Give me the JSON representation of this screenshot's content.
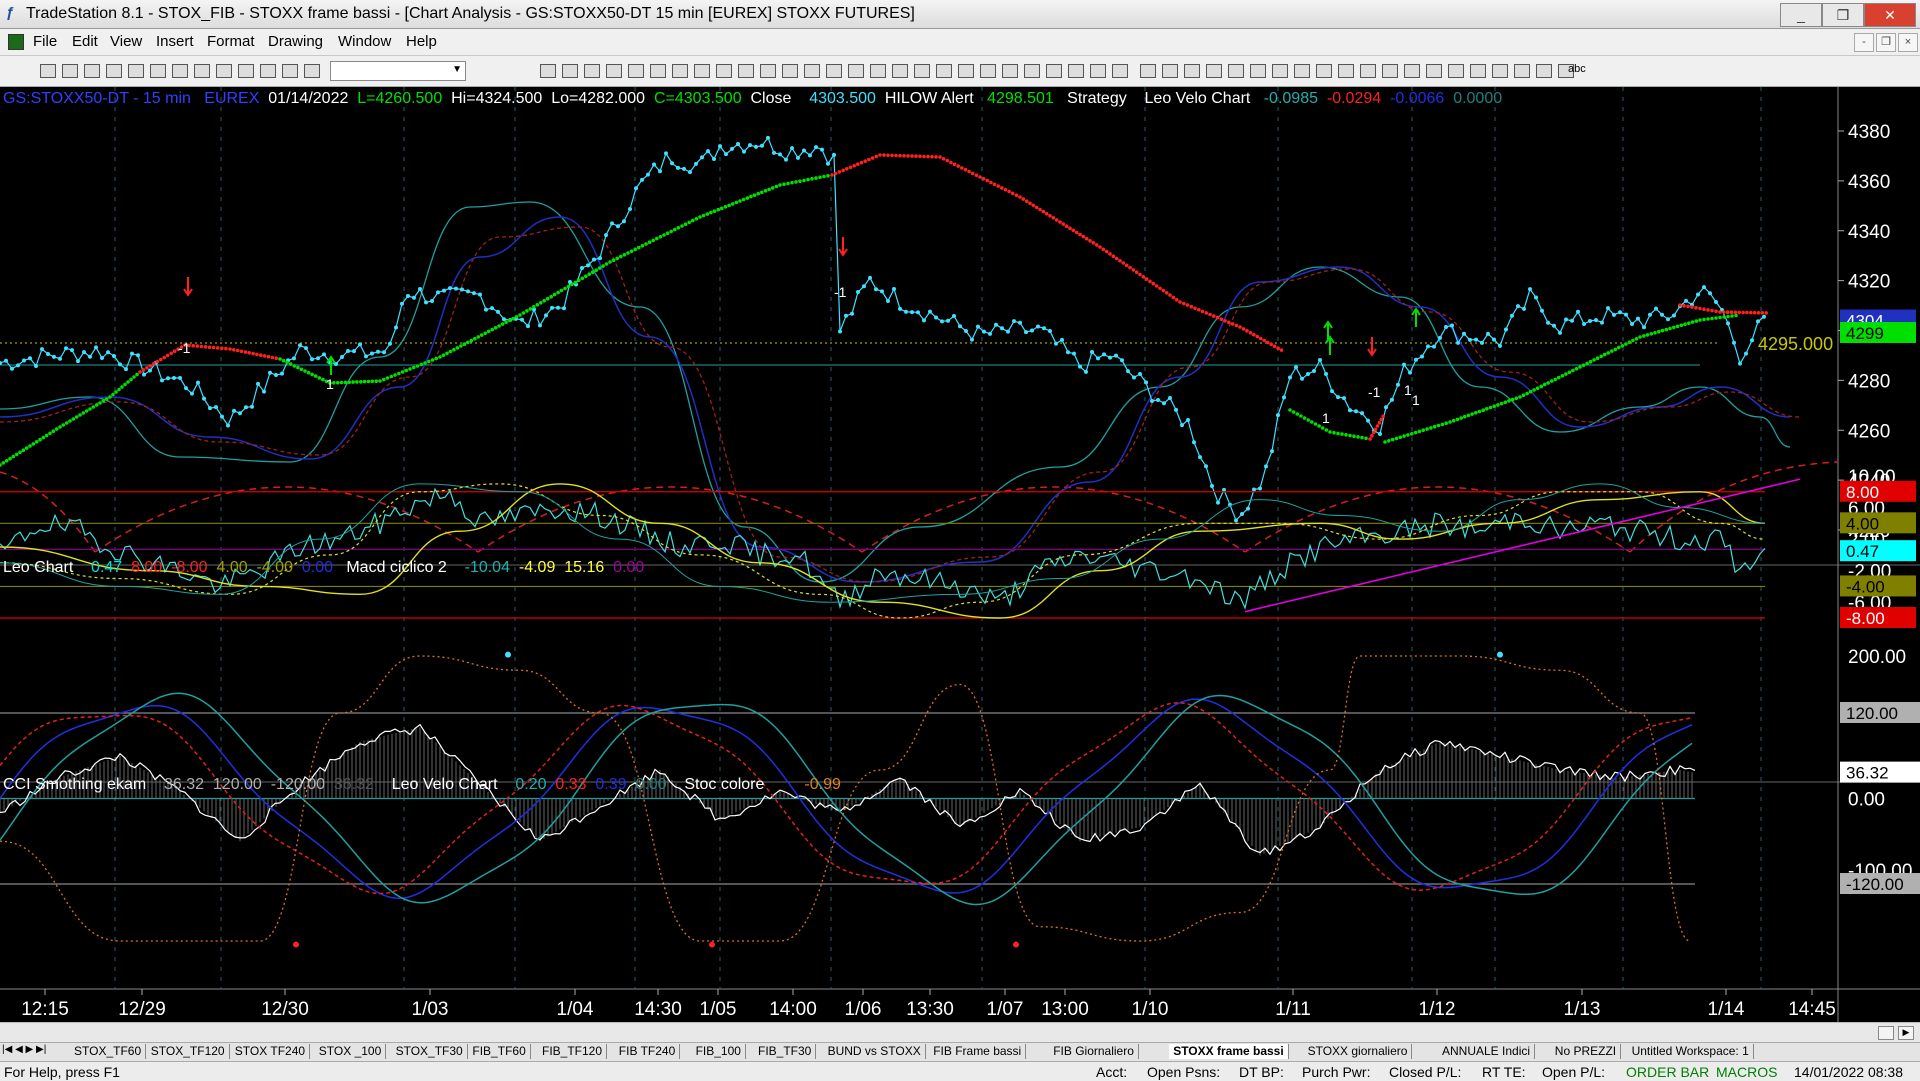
{
  "window": {
    "title": "TradeStation 8.1 - STOX_FIB - STOXX frame bassi - [Chart Analysis - GS:STOXX50-DT  15 min  [EUREX] STOXX FUTURES]",
    "controls": {
      "minimize": "_",
      "restore": "❐",
      "close": "✕"
    }
  },
  "menu": {
    "items": [
      "File",
      "Edit",
      "View",
      "Insert",
      "Format",
      "Drawing",
      "Window",
      "Help"
    ],
    "mdi": {
      "minimize": "-",
      "restore": "❐",
      "close": "×"
    }
  },
  "toolbar": {
    "combo_value": "",
    "text_tool_label": "abc"
  },
  "chart_header": {
    "symbol": "GS:STOXX50-DT - 15 min",
    "exchange": "EUREX",
    "date": "01/14/2022",
    "last": "L=4260.500",
    "hi": "Hi=4324.500",
    "lo": "Lo=4282.000",
    "close_c": "C=4303.500",
    "close_label": "Close",
    "close_val": "4303.500",
    "hilow_label": "HILOW Alert",
    "hilow_val": "4298.501",
    "strategy_label": "Strategy",
    "leo_label": "Leo Velo Chart",
    "leo_v1": "-0.0985",
    "leo_v2": "-0.0294",
    "leo_v3": "-0.0066",
    "leo_v4": "0.0000"
  },
  "panel2_header": {
    "leo_label": "Leo Chart",
    "v1": "0.47",
    "v2": "8.00",
    "v3": "-8.00",
    "v4": "4.00",
    "v5": "-4.00",
    "v6": "0.00",
    "macd_label": "Macd ciclico 2",
    "m1": "-10.04",
    "m2": "-4.09",
    "m3": "15.16",
    "m4": "0.00"
  },
  "panel3_header": {
    "cci_label": "CCI Smothing ekam",
    "c1": "36.32",
    "c2": "120.00",
    "c3": "-120.00",
    "c4": "36.32",
    "leo_label": "Leo Velo Chart",
    "l1": "0.20",
    "l2": "0.33",
    "l3": "0.39",
    "l4": "0.00",
    "stoc_label": "Stoc colore",
    "stoc_val": "-0.99"
  },
  "price_axis": {
    "ticks": [
      "4380",
      "4360",
      "4340",
      "4320",
      "4300",
      "4280",
      "4260",
      "4240",
      "4220"
    ],
    "marker_blue": "4304",
    "marker_green": "4299",
    "level_label": "4295.000"
  },
  "osc_axis": {
    "ticks": [
      "10.00",
      "6.00",
      "2.00",
      "-2.00",
      "-6.00"
    ],
    "markers": [
      {
        "text": "8.00",
        "color": "#e00000",
        "textColor": "#ffffff"
      },
      {
        "text": "4.00",
        "color": "#808000",
        "textColor": "#000000"
      },
      {
        "text": "0.47",
        "color": "#00ffff",
        "textColor": "#000000"
      },
      {
        "text": "-4.00",
        "color": "#808000",
        "textColor": "#000000"
      },
      {
        "text": "-8.00",
        "color": "#e00000",
        "textColor": "#ffffff"
      }
    ]
  },
  "cci_axis": {
    "ticks": [
      "200.00",
      "0.00",
      "-100.00"
    ],
    "markers": [
      {
        "text": "120.00",
        "color": "#b0b0b0",
        "textColor": "#000000"
      },
      {
        "text": "36.32",
        "color": "#ffffff",
        "textColor": "#000000"
      },
      {
        "text": "-120.00",
        "color": "#b0b0b0",
        "textColor": "#000000"
      }
    ]
  },
  "time_axis": {
    "labels": [
      "12:15",
      "12/29",
      "12/30",
      "1/03",
      "1/04",
      "14:30",
      "1/05",
      "14:00",
      "1/06",
      "13:30",
      "1/07",
      "13:00",
      "1/10",
      "1/11",
      "1/12",
      "1/13",
      "1/14",
      "14:45"
    ]
  },
  "signals": [
    "-1",
    "1",
    "-1",
    "-1",
    "1",
    "1",
    "1"
  ],
  "colors": {
    "price": "#40e0ff",
    "green_ma": "#00e000",
    "red_ma": "#ff2020",
    "blue_line": "#2030c0",
    "teal_line": "#20a0a0",
    "magenta_trend": "#e000e0"
  },
  "tabs": [
    "STOX_TF60",
    "STOX_TF120",
    "STOX TF240",
    "STOX _100",
    "STOX_TF30",
    "FIB_TF60",
    "FIB_TF120",
    "FIB TF240",
    "FIB_100",
    "FIB_TF30",
    "BUND vs STOXX",
    "FIB Frame bassi",
    "FIB Giornaliero",
    "STOXX frame bassi",
    "STOXX giornaliero",
    "ANNUALE Indici",
    "No PREZZI",
    "Untitled Workspace: 1"
  ],
  "active_tab": "STOXX frame bassi",
  "status": {
    "help": "For Help, press F1",
    "acct": "Acct:",
    "open_psns": "Open Psns:",
    "dt_bp": "DT BP:",
    "purch_pwr": "Purch Pwr:",
    "closed_pl": "Closed P/L:",
    "rt_te": "RT TE:",
    "open_pl": "Open P/L:",
    "order_bar": "ORDER BAR",
    "macros": "MACROS",
    "datetime": "14/01/2022 08:38"
  }
}
